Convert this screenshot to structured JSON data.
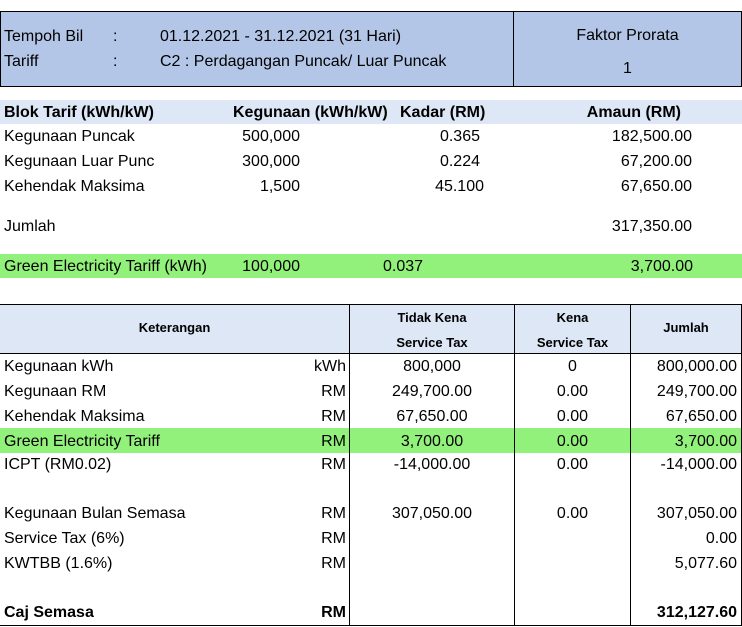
{
  "header": {
    "tempoh_label": "Tempoh Bil",
    "tempoh_colon": ":",
    "tempoh_value": "01.12.2021 - 31.12.2021 (31 Hari)",
    "tariff_label": "Tariff",
    "tariff_colon": ":",
    "tariff_value": "C2 : Perdagangan Puncak/ Luar Puncak",
    "faktor_label": "Faktor Prorata",
    "faktor_value": "1"
  },
  "tariff_table": {
    "headers": [
      "Blok Tarif (kWh/kW)",
      "Kegunaan (kWh/kW)",
      "Kadar (RM)",
      "Amaun (RM)"
    ],
    "rows": [
      {
        "label": "Kegunaan Puncak",
        "usage": "500,000",
        "rate": "0.365",
        "amount": "182,500.00"
      },
      {
        "label": "Kegunaan Luar Punc",
        "usage": "300,000",
        "rate": "0.224",
        "amount": "67,200.00"
      },
      {
        "label": "Kehendak Maksima",
        "usage": "1,500",
        "rate": "45.100",
        "amount": "67,650.00"
      }
    ],
    "total_label": "Jumlah",
    "total_amount": "317,350.00",
    "green": {
      "label": "Green Electricity Tariff (kWh)",
      "usage": "100,000",
      "rate": "0.037",
      "amount": "3,700.00"
    }
  },
  "summary_table": {
    "h_keterangan": "Keterangan",
    "h_tidak_1": "Tidak Kena",
    "h_tidak_2": "Service Tax",
    "h_kena_1": "Kena",
    "h_kena_2": "Service Tax",
    "h_jumlah": "Jumlah",
    "rows": [
      {
        "label": "Kegunaan kWh",
        "unit": "kWh",
        "tidak": "800,000",
        "kena": "0",
        "jumlah": "800,000.00"
      },
      {
        "label": "Kegunaan RM",
        "unit": "RM",
        "tidak": "249,700.00",
        "kena": "0.00",
        "jumlah": "249,700.00"
      },
      {
        "label": "Kehendak Maksima",
        "unit": "RM",
        "tidak": "67,650.00",
        "kena": "0.00",
        "jumlah": "67,650.00"
      },
      {
        "label": "Green Electricity Tariff",
        "unit": "RM",
        "tidak": "3,700.00",
        "kena": "0.00",
        "jumlah": "3,700.00"
      },
      {
        "label": "ICPT (RM0.02)",
        "unit": "RM",
        "tidak": "-14,000.00",
        "kena": "0.00",
        "jumlah": "-14,000.00"
      },
      {
        "label": "Kegunaan Bulan Semasa",
        "unit": "RM",
        "tidak": "307,050.00",
        "kena": "0.00",
        "jumlah": "307,050.00"
      },
      {
        "label": "Service Tax (6%)",
        "unit": "RM",
        "tidak": "",
        "kena": "",
        "jumlah": "0.00"
      },
      {
        "label": "KWTBB (1.6%)",
        "unit": "RM",
        "tidak": "",
        "kena": "",
        "jumlah": "5,077.60"
      }
    ],
    "final": {
      "label": "Caj Semasa",
      "unit": "RM",
      "jumlah": "312,127.60"
    }
  },
  "colors": {
    "header_blue": "#b4c6e7",
    "light_blue": "#dde7f5",
    "green": "#92f17a",
    "border": "#000000"
  }
}
